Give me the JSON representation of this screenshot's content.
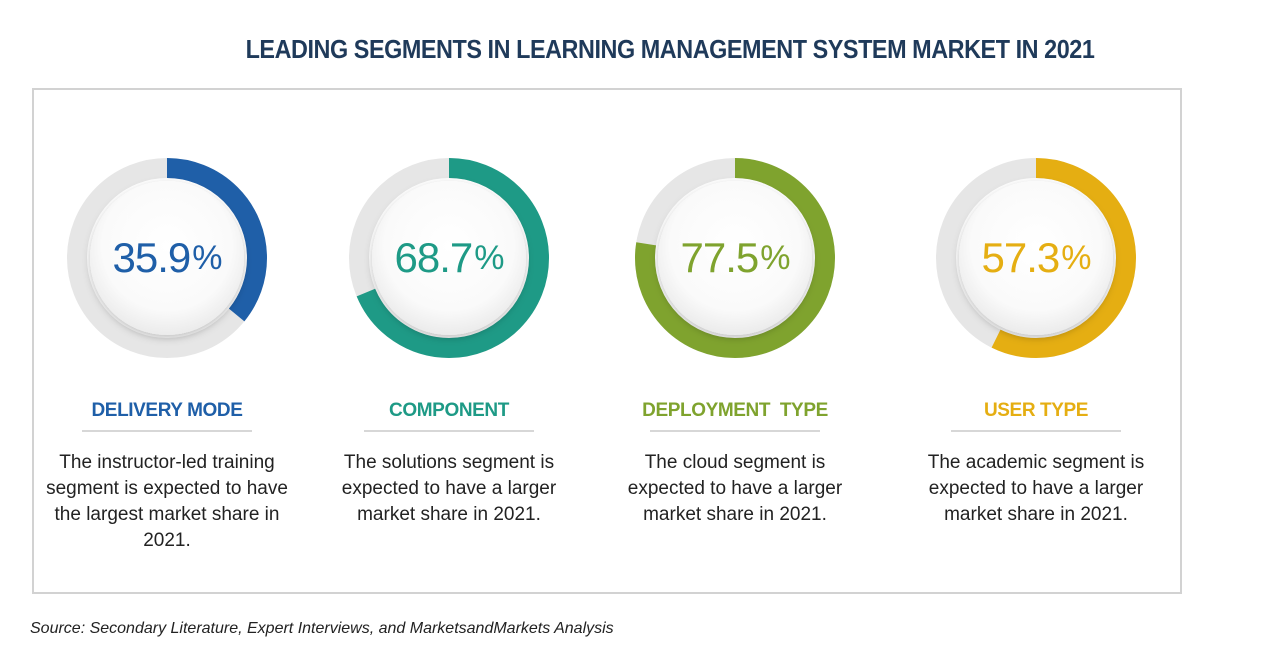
{
  "title": "LEADING SEGMENTS IN LEARNING MANAGEMENT SYSTEM MARKET IN 2021",
  "source": "Source: Secondary Literature, Expert Interviews, and MarketsandMarkets Analysis",
  "chart_data": {
    "type": "pie",
    "title": "LEADING SEGMENTS IN LEARNING MANAGEMENT SYSTEM MARKET IN 2021",
    "segments": [
      {
        "category": "DELIVERY MODE",
        "value": 35.9,
        "value_text": "35.9",
        "unit": "%",
        "color": "#1f5fa8",
        "description": "The instructor-led training segment is expected to have the largest market share in 2021."
      },
      {
        "category": "COMPONENT",
        "value": 68.7,
        "value_text": "68.7",
        "unit": "%",
        "color": "#1e9a86",
        "description": "The solutions segment is expected to have a larger market share in 2021."
      },
      {
        "category": "DEPLOYMENT  TYPE",
        "value": 77.5,
        "value_text": "77.5",
        "unit": "%",
        "color": "#7fa32e",
        "description": "The cloud segment is expected to have a larger market share in 2021."
      },
      {
        "category": "USER TYPE",
        "value": 57.3,
        "value_text": "57.3",
        "unit": "%",
        "color": "#e5ae12",
        "description": "The academic segment is expected to have a larger market share in 2021."
      }
    ]
  }
}
